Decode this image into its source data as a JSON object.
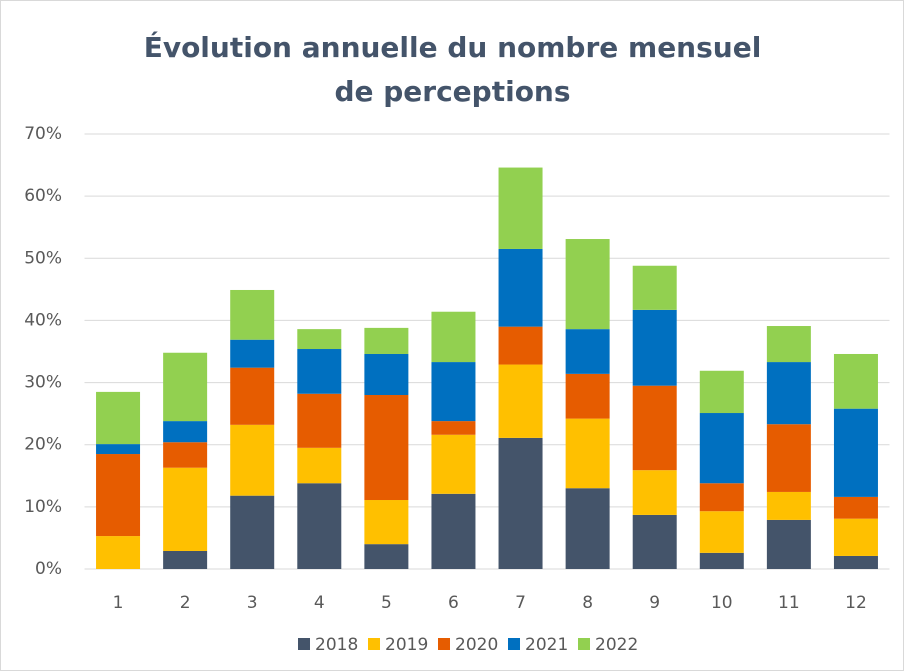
{
  "chart_data": {
    "type": "bar",
    "stacked": true,
    "title": "Évolution annuelle du nombre mensuel de perceptions",
    "categories": [
      "1",
      "2",
      "3",
      "4",
      "5",
      "6",
      "7",
      "8",
      "9",
      "10",
      "11",
      "12"
    ],
    "series": [
      {
        "name": "2018",
        "color": "#44546a",
        "values": [
          0,
          2.9,
          11.8,
          13.8,
          4.0,
          12.1,
          21.1,
          13.0,
          8.7,
          2.6,
          7.9,
          2.1
        ]
      },
      {
        "name": "2019",
        "color": "#ffc000",
        "values": [
          5.3,
          13.4,
          11.4,
          5.7,
          7.1,
          9.5,
          11.8,
          11.2,
          7.2,
          6.7,
          4.5,
          6.0
        ]
      },
      {
        "name": "2020",
        "color": "#e65c00",
        "values": [
          13.2,
          4.1,
          9.2,
          8.7,
          16.9,
          2.2,
          6.1,
          7.2,
          13.6,
          4.5,
          10.9,
          3.5
        ]
      },
      {
        "name": "2021",
        "color": "#0070c0",
        "values": [
          1.6,
          3.4,
          4.5,
          7.2,
          6.6,
          9.5,
          12.5,
          7.2,
          12.2,
          11.3,
          10.0,
          14.2
        ]
      },
      {
        "name": "2022",
        "color": "#92d050",
        "values": [
          8.4,
          11.0,
          8.0,
          3.2,
          4.2,
          8.1,
          13.1,
          14.5,
          7.1,
          6.8,
          5.8,
          8.8
        ]
      }
    ],
    "ylim": [
      0,
      70
    ],
    "yticks": [
      {
        "value": 0,
        "label": "0%"
      },
      {
        "value": 10,
        "label": "10%"
      },
      {
        "value": 20,
        "label": "20%"
      },
      {
        "value": 30,
        "label": "30%"
      },
      {
        "value": 40,
        "label": "40%"
      },
      {
        "value": 50,
        "label": "50%"
      },
      {
        "value": 60,
        "label": "60%"
      },
      {
        "value": 70,
        "label": "70%"
      }
    ],
    "grid": true,
    "legend": "bottom"
  }
}
